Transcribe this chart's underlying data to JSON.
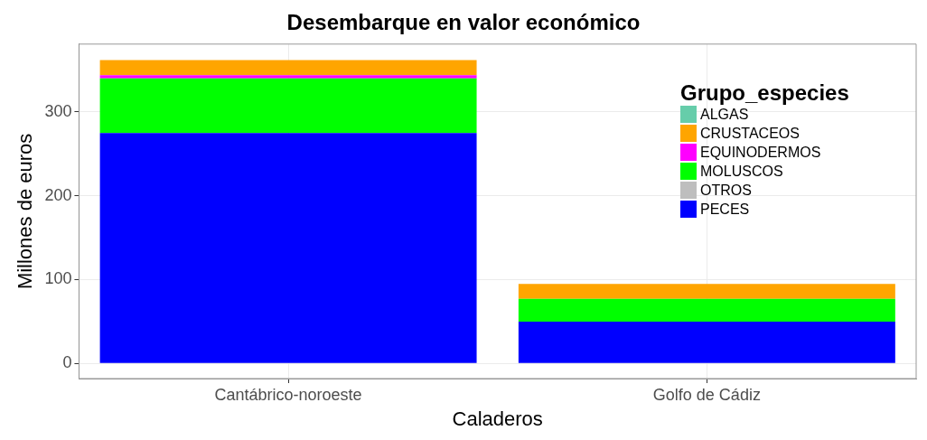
{
  "chart_data": {
    "type": "bar",
    "title": "Desembarque en valor económico",
    "xlabel": "Caladeros",
    "ylabel": "Millones de euros",
    "legend_title": "Grupo_especies",
    "categories": [
      "Cantábrico-noroeste",
      "Golfo de Cádiz"
    ],
    "stacked": true,
    "ylim": [
      -18,
      381
    ],
    "yticks": [
      0,
      100,
      200,
      300
    ],
    "grid": true,
    "legend": "top right",
    "series": [
      {
        "name": "PECES",
        "color": "#0000ff",
        "values": [
          275,
          50
        ]
      },
      {
        "name": "OTROS",
        "color": "#bebebe",
        "values": [
          null,
          null
        ]
      },
      {
        "name": "MOLUSCOS",
        "color": "#00ff00",
        "values": [
          65,
          27
        ]
      },
      {
        "name": "EQUINODERMOS",
        "color": "#ff00ff",
        "values": [
          4,
          0
        ]
      },
      {
        "name": "CRUSTACEOS",
        "color": "#ffa500",
        "values": [
          18,
          18
        ]
      },
      {
        "name": "ALGAS",
        "color": "#66cdaa",
        "values": [
          null,
          null
        ]
      }
    ]
  }
}
